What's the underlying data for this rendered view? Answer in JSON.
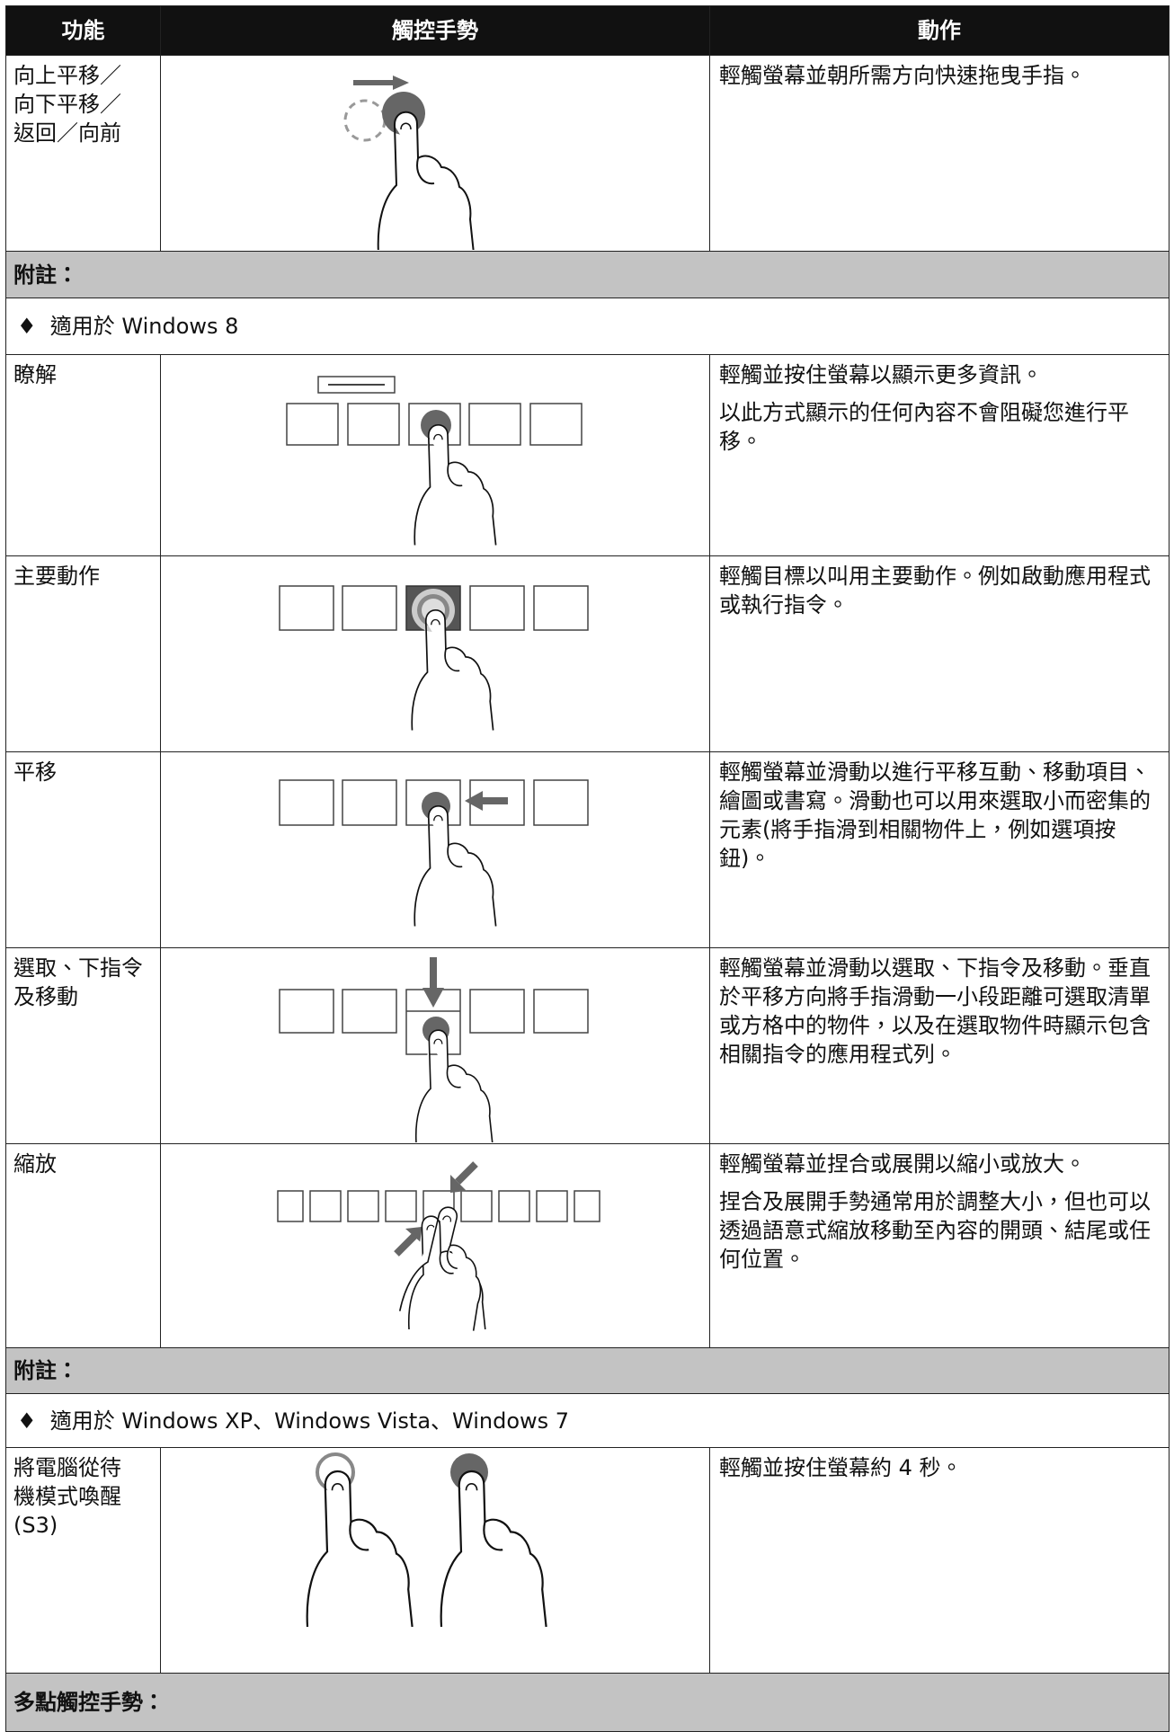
{
  "header": {
    "function": "功能",
    "gesture": "觸控手勢",
    "action": "動作"
  },
  "rows": [
    {
      "function": "向上平移／\n向下平移／\n返回／向前",
      "action": [
        "輕觸螢幕並朝所需方向快速拖曳手指。"
      ]
    },
    {
      "note": "附註："
    },
    {
      "bullet": "♦",
      "text": "適用於 Windows 8"
    },
    {
      "function": "瞭解",
      "action": [
        "輕觸並按住螢幕以顯示更多資訊。",
        "以此方式顯示的任何內容不會阻礙您進行平移。"
      ]
    },
    {
      "function": "主要動作",
      "action": [
        "輕觸目標以叫用主要動作。例如啟動應用程式或執行指令。"
      ]
    },
    {
      "function": "平移",
      "action": [
        "輕觸螢幕並滑動以進行平移互動、移動項目、繪圖或書寫。滑動也可以用來選取小而密集的元素(將手指滑到相關物件上，例如選項按鈕)。"
      ]
    },
    {
      "function": "選取、下指令\n及移動",
      "action": [
        "輕觸螢幕並滑動以選取、下指令及移動。垂直於平移方向將手指滑動一小段距離可選取清單或方格中的物件，以及在選取物件時顯示包含相關指令的應用程式列。"
      ]
    },
    {
      "function": "縮放",
      "action": [
        "輕觸螢幕並捏合或展開以縮小或放大。",
        "捏合及展開手勢通常用於調整大小，但也可以透過語意式縮放移動至內容的開頭、結尾或任何位置。"
      ]
    },
    {
      "note": "附註："
    },
    {
      "bullet": "♦",
      "text": "適用於 Windows XP、Windows Vista、Windows 7"
    },
    {
      "function": "將電腦從待\n機模式喚醒\n(S3)",
      "action": [
        "輕觸並按住螢幕約 4 秒。"
      ]
    },
    {
      "note": "多點觸控手勢："
    }
  ]
}
